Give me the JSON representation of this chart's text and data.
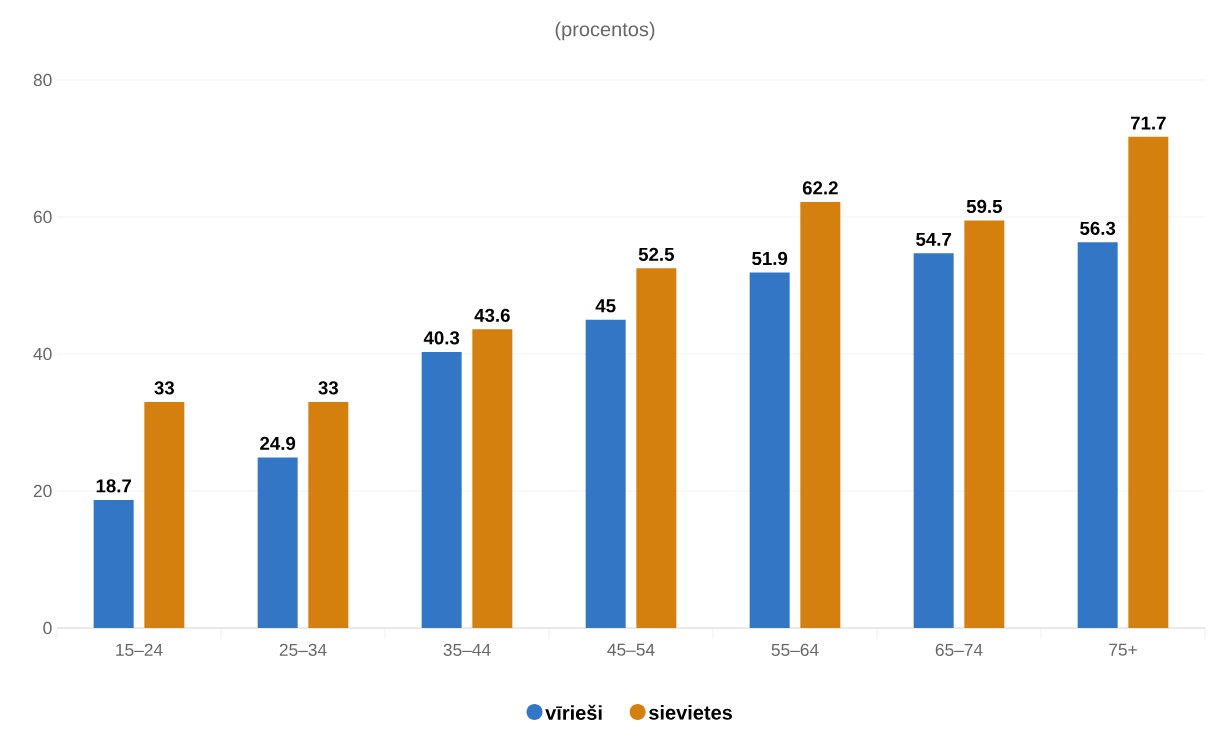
{
  "chart_data": {
    "type": "bar",
    "title": "(procentos)",
    "categories": [
      "15–24",
      "25–34",
      "35–44",
      "45–54",
      "55–64",
      "65–74",
      "75+"
    ],
    "series": [
      {
        "name": "vīrieši",
        "color": "#3476c6",
        "values": [
          18.7,
          24.9,
          40.3,
          45,
          51.9,
          54.7,
          56.3
        ]
      },
      {
        "name": "sievietes",
        "color": "#d4800f",
        "values": [
          33,
          33,
          43.6,
          52.5,
          62.2,
          59.5,
          71.7
        ]
      }
    ],
    "ylim": [
      0,
      80
    ],
    "yticks": [
      0,
      20,
      40,
      60,
      80
    ],
    "grid": "y",
    "legend": "bottom",
    "marker": "circle",
    "data_labels": true
  }
}
